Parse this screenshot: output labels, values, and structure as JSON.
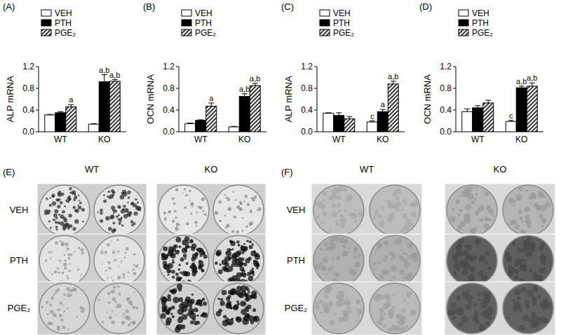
{
  "chart_data": [
    {
      "type": "bar",
      "title": "(A)",
      "y_label": "ALP mRNA",
      "categories": [
        "WT",
        "KO"
      ],
      "ylim": [
        0,
        1.2
      ],
      "yticks": [
        {
          "value": 0,
          "label": "0.0"
        },
        0.4,
        0.8,
        1.2
      ],
      "grid": false,
      "legend": "top-left",
      "series": [
        {
          "name": "VEH",
          "color": "#ffffff",
          "values": [
            0.31,
            0.14
          ],
          "errors": [
            0.01,
            0.01
          ],
          "significance": [
            null,
            null
          ]
        },
        {
          "name": "PTH",
          "color": "#000000",
          "values": [
            0.35,
            0.92
          ],
          "errors": [
            0.02,
            0.13
          ],
          "significance": [
            null,
            "a,b"
          ]
        },
        {
          "name": "PGE₂",
          "color": "#000000",
          "values": [
            0.46,
            0.93
          ],
          "errors": [
            0.04,
            0.03
          ],
          "significance": [
            "a",
            "a,b"
          ]
        }
      ]
    },
    {
      "type": "bar",
      "title": "(B)",
      "y_label": "OCN mRNA",
      "categories": [
        "WT",
        "KO"
      ],
      "ylim": [
        0,
        1.2
      ],
      "yticks": [
        {
          "value": 0,
          "label": "0.0"
        },
        0.4,
        0.8,
        1.2
      ],
      "grid": false,
      "legend": "top-left",
      "series": [
        {
          "name": "VEH",
          "color": "#ffffff",
          "values": [
            0.15,
            0.09
          ],
          "errors": [
            0.01,
            0.01
          ],
          "significance": [
            null,
            null
          ]
        },
        {
          "name": "PTH",
          "color": "#000000",
          "values": [
            0.21,
            0.65
          ],
          "errors": [
            0.01,
            0.05
          ],
          "significance": [
            null,
            "a,b"
          ]
        },
        {
          "name": "PGE₂",
          "color": "#000000",
          "values": [
            0.47,
            0.85
          ],
          "errors": [
            0.06,
            0.04
          ],
          "significance": [
            "a",
            "a,b"
          ]
        }
      ]
    },
    {
      "type": "bar",
      "title": "(C)",
      "y_label": "ALP mRNA",
      "categories": [
        "WT",
        "KO"
      ],
      "ylim": [
        0,
        1.2
      ],
      "yticks": [
        {
          "value": 0,
          "label": "0.0"
        },
        0.4,
        0.8,
        1.2
      ],
      "grid": false,
      "legend": "top-left",
      "series": [
        {
          "name": "VEH",
          "color": "#ffffff",
          "values": [
            0.34,
            0.18
          ],
          "errors": [
            0.01,
            0.02
          ],
          "significance": [
            null,
            "c"
          ]
        },
        {
          "name": "PTH",
          "color": "#000000",
          "values": [
            0.3,
            0.37
          ],
          "errors": [
            0.05,
            0.04
          ],
          "significance": [
            null,
            "a"
          ]
        },
        {
          "name": "PGE₂",
          "color": "#000000",
          "values": [
            0.24,
            0.88
          ],
          "errors": [
            0.04,
            0.05
          ],
          "significance": [
            null,
            "a,b"
          ]
        }
      ]
    },
    {
      "type": "bar",
      "title": "(D)",
      "y_label": "OCN mRNA",
      "categories": [
        "WT",
        "KO"
      ],
      "ylim": [
        0,
        1.2
      ],
      "yticks": [
        {
          "value": 0,
          "label": "0.0"
        },
        0.4,
        0.8,
        1.2
      ],
      "grid": false,
      "legend": "top-left",
      "series": [
        {
          "name": "VEH",
          "color": "#ffffff",
          "values": [
            0.37,
            0.19
          ],
          "errors": [
            0.05,
            0.02
          ],
          "significance": [
            null,
            "c"
          ]
        },
        {
          "name": "PTH",
          "color": "#000000",
          "values": [
            0.44,
            0.81
          ],
          "errors": [
            0.04,
            0.03
          ],
          "significance": [
            null,
            "a,b"
          ]
        },
        {
          "name": "PGE₂",
          "color": "#000000",
          "values": [
            0.53,
            0.84
          ],
          "errors": [
            0.05,
            0.06
          ],
          "significance": [
            null,
            "a,b"
          ]
        }
      ]
    }
  ],
  "plate_panels": [
    {
      "title": "(E)",
      "columns": [
        "WT",
        "KO"
      ],
      "rows": [
        "VEH",
        "PTH",
        "PGE₂"
      ]
    },
    {
      "title": "(F)",
      "columns": [
        "WT",
        "KO"
      ],
      "rows": [
        "VEH",
        "PTH",
        "PGE₂"
      ]
    }
  ]
}
